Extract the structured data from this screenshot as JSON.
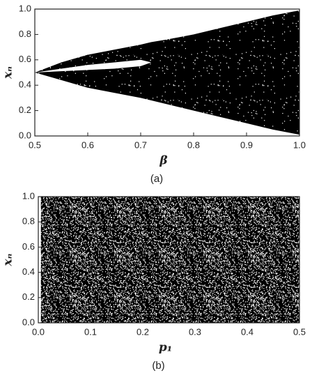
{
  "chart_data": [
    {
      "type": "area",
      "caption": "(a)",
      "xlabel": "β",
      "ylabel": "xₙ",
      "x": [
        0.5,
        0.55,
        0.6,
        0.65,
        0.7,
        0.72,
        0.75,
        0.8,
        0.85,
        0.9,
        0.95,
        1.0
      ],
      "upper": [
        0.5,
        0.58,
        0.64,
        0.68,
        0.72,
        0.74,
        0.76,
        0.8,
        0.85,
        0.9,
        0.95,
        0.99
      ],
      "lower": [
        0.5,
        0.44,
        0.38,
        0.34,
        0.3,
        0.28,
        0.25,
        0.2,
        0.15,
        0.1,
        0.05,
        0.01
      ],
      "gap_upper": [
        0.5,
        0.53,
        0.56,
        0.58,
        0.6,
        0.58,
        null,
        null,
        null,
        null,
        null,
        null
      ],
      "gap_lower": [
        0.5,
        0.51,
        0.52,
        0.53,
        0.55,
        0.58,
        null,
        null,
        null,
        null,
        null,
        null
      ],
      "color": "#000000",
      "xlim": [
        0.5,
        1.0
      ],
      "xticks": [
        0.5,
        0.6,
        0.7,
        0.8,
        0.9,
        {
          "value": 1.0,
          "label": "1.0"
        }
      ],
      "ylim": [
        0,
        1.0
      ],
      "yticks": [
        {
          "value": 0,
          "label": "0.0"
        },
        0.2,
        0.4,
        0.6,
        0.8,
        {
          "value": 1.0,
          "label": "1.0"
        }
      ]
    },
    {
      "type": "area",
      "caption": "(b)",
      "xlabel": "p₁",
      "ylabel": "xₙ",
      "x": [
        0.005,
        0.5
      ],
      "upper": [
        1.0,
        1.0
      ],
      "lower": [
        0,
        0
      ],
      "color": "#000000",
      "xlim": [
        0,
        0.5
      ],
      "xticks": [
        {
          "value": 0,
          "label": "0.0"
        },
        0.1,
        0.2,
        0.3,
        0.4,
        0.5
      ],
      "ylim": [
        0,
        1.0
      ],
      "yticks": [
        {
          "value": 0,
          "label": "0.0"
        },
        0.2,
        0.4,
        0.6,
        0.8,
        {
          "value": 1.0,
          "label": "1.0"
        }
      ]
    }
  ]
}
